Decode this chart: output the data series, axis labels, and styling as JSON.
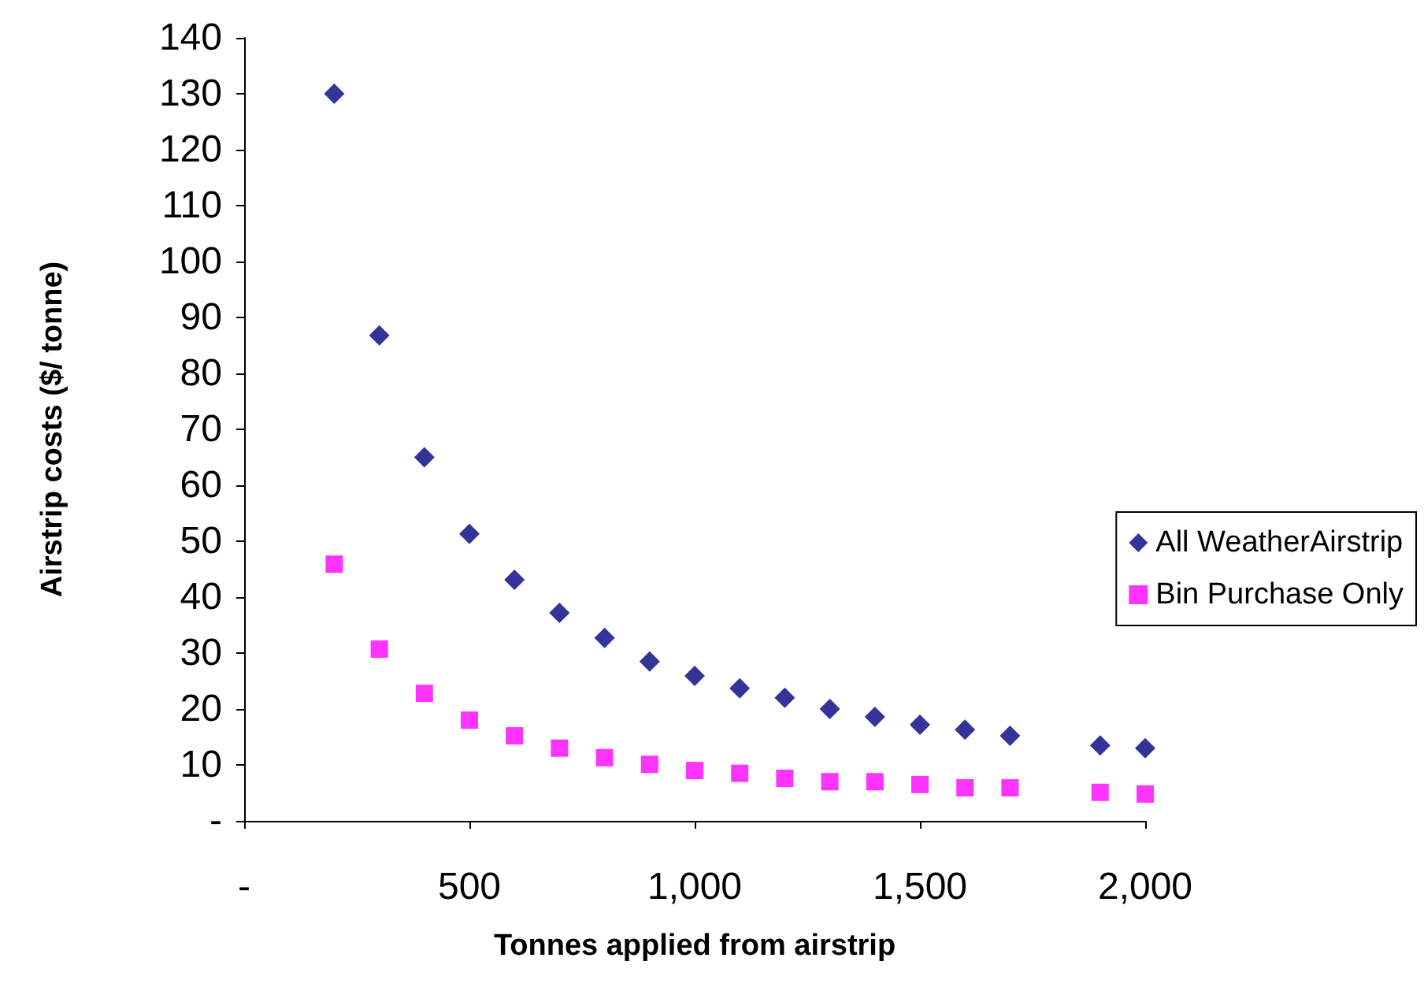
{
  "chart_data": {
    "type": "scatter",
    "xlabel": "Tonnes applied from airstrip",
    "ylabel": "Airstrip costs ($/ tonne)",
    "x": [
      200,
      300,
      400,
      500,
      600,
      700,
      800,
      900,
      1000,
      1100,
      1200,
      1300,
      1400,
      1500,
      1600,
      1700,
      1900,
      2000
    ],
    "series": [
      {
        "name": "All WeatherAirstrip",
        "color": "#000080",
        "marker": "diamond",
        "values": [
          130,
          86.8,
          65,
          51.3,
          43.1,
          37.2,
          32.7,
          28.5,
          25.9,
          23.7,
          22,
          20,
          18.6,
          17.2,
          16.3,
          15.2,
          13.5,
          13
        ]
      },
      {
        "name": "Bin Purchase Only",
        "color": "#ff00ff",
        "marker": "square",
        "values": [
          45.9,
          30.7,
          22.8,
          18,
          15.2,
          13,
          11.3,
          10.1,
          9,
          8.5,
          7.6,
          7,
          7,
          6.5,
          5.9,
          5.9,
          5.1,
          4.8
        ]
      }
    ],
    "xlim": [
      0,
      2000
    ],
    "xticks": [
      {
        "value": 0,
        "label": "-"
      },
      500,
      {
        "value": 1000,
        "label": "1,000"
      },
      {
        "value": 1500,
        "label": "1,500"
      },
      {
        "value": 2000,
        "label": "2,000"
      }
    ],
    "ylim": [
      0,
      140
    ],
    "yticks": [
      {
        "value": 0,
        "label": "-"
      },
      10,
      20,
      30,
      40,
      50,
      60,
      70,
      80,
      90,
      100,
      110,
      120,
      130,
      140
    ],
    "grid": false,
    "legend": "right"
  }
}
